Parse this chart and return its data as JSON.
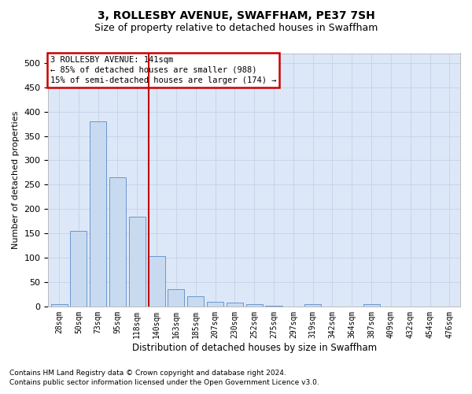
{
  "title": "3, ROLLESBY AVENUE, SWAFFHAM, PE37 7SH",
  "subtitle": "Size of property relative to detached houses in Swaffham",
  "xlabel": "Distribution of detached houses by size in Swaffham",
  "ylabel": "Number of detached properties",
  "footnote1": "Contains HM Land Registry data © Crown copyright and database right 2024.",
  "footnote2": "Contains public sector information licensed under the Open Government Licence v3.0.",
  "annotation_line1": "3 ROLLESBY AVENUE: 141sqm",
  "annotation_line2": "← 85% of detached houses are smaller (988)",
  "annotation_line3": "15% of semi-detached houses are larger (174) →",
  "bar_labels": [
    "28sqm",
    "50sqm",
    "73sqm",
    "95sqm",
    "118sqm",
    "140sqm",
    "163sqm",
    "185sqm",
    "207sqm",
    "230sqm",
    "252sqm",
    "275sqm",
    "297sqm",
    "319sqm",
    "342sqm",
    "364sqm",
    "387sqm",
    "409sqm",
    "432sqm",
    "454sqm",
    "476sqm"
  ],
  "bar_values": [
    5,
    155,
    380,
    265,
    185,
    103,
    35,
    20,
    10,
    8,
    5,
    2,
    0,
    4,
    0,
    0,
    4,
    0,
    0,
    0,
    0
  ],
  "bar_color": "#c8daf0",
  "bar_edge_color": "#5b8ac8",
  "vline_x_index": 5,
  "vline_color": "#c00000",
  "ylim": [
    0,
    520
  ],
  "yticks": [
    0,
    50,
    100,
    150,
    200,
    250,
    300,
    350,
    400,
    450,
    500
  ],
  "grid_color": "#c8d4e8",
  "bg_color": "#dce8f8",
  "title_fontsize": 10,
  "subtitle_fontsize": 9,
  "ann_fontsize": 7.5,
  "ylabel_fontsize": 8,
  "xlabel_fontsize": 8.5,
  "xtick_fontsize": 7,
  "ytick_fontsize": 8,
  "annotation_box_color": "#cc0000",
  "footnote_fontsize": 6.5
}
